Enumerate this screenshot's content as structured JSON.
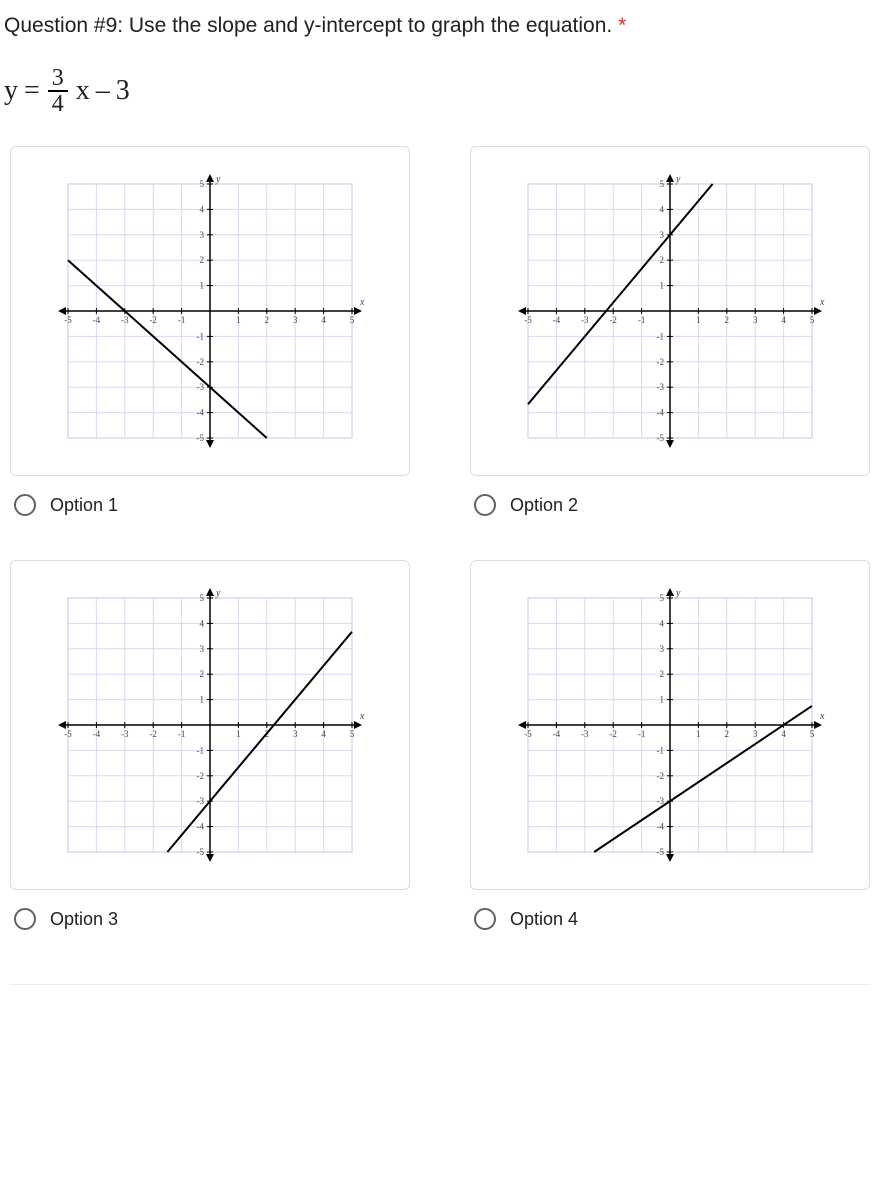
{
  "question": {
    "title_text": "Question #9: Use the slope and y-intercept to graph the equation.",
    "required_marker": "*"
  },
  "equation": {
    "lhs": "y",
    "eq": "=",
    "numerator": "3",
    "denominator": "4",
    "var": "x",
    "op": "–",
    "const": "3"
  },
  "chart_style": {
    "xlim": [
      -5,
      5
    ],
    "ylim": [
      -5,
      5
    ],
    "tick_step": 1,
    "grid_color": "#d8d8f0",
    "axis_color": "#000000",
    "line_color": "#000000",
    "line_width": 2,
    "background_color": "#ffffff",
    "tick_fontsize": 9,
    "tick_color": "#444444",
    "axis_label_x": "x",
    "axis_label_y": "y"
  },
  "options": [
    {
      "label": "Option 1",
      "line": {
        "slope_num": -1,
        "slope_den": 1,
        "intercept": -3,
        "p1": [
          -5,
          2
        ],
        "p2": [
          2,
          -5
        ]
      }
    },
    {
      "label": "Option 2",
      "line": {
        "slope_num": 4,
        "slope_den": 3,
        "intercept": 3,
        "p1": [
          -5,
          -3.67
        ],
        "p2": [
          1.5,
          5
        ]
      }
    },
    {
      "label": "Option 3",
      "line": {
        "slope_num": 4,
        "slope_den": 3,
        "intercept": -3,
        "p1": [
          -1.5,
          -5
        ],
        "p2": [
          5,
          3.67
        ]
      }
    },
    {
      "label": "Option 4",
      "line": {
        "slope_num": 3,
        "slope_den": 4,
        "intercept": -3,
        "p1": [
          -2.67,
          -5
        ],
        "p2": [
          5,
          0.75
        ]
      }
    }
  ]
}
